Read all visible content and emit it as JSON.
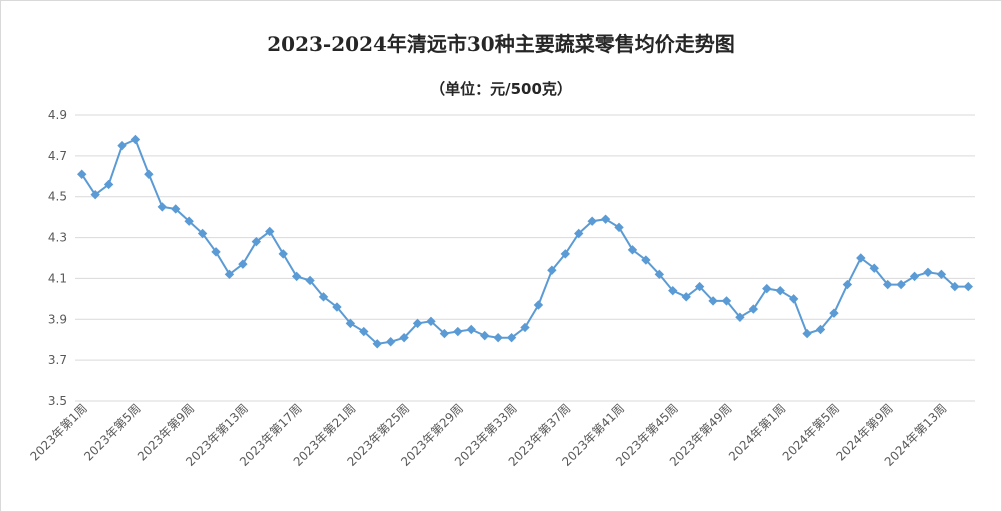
{
  "chart_data": {
    "type": "line",
    "title": "2023-2024年清远市30种主要蔬菜零售均价走势图",
    "subtitle": "（单位：元/500克）",
    "ylim": [
      3.5,
      4.9
    ],
    "yticks": [
      "3.5",
      "3.7",
      "3.9",
      "4.1",
      "4.3",
      "4.5",
      "4.7",
      "4.9"
    ],
    "grid": true,
    "line_color": "#5b9bd5",
    "x": [
      "2023年第1周",
      "2023年第2周",
      "2023年第3周",
      "2023年第4周",
      "2023年第5周",
      "2023年第6周",
      "2023年第7周",
      "2023年第8周",
      "2023年第9周",
      "2023年第10周",
      "2023年第11周",
      "2023年第12周",
      "2023年第13周",
      "2023年第14周",
      "2023年第15周",
      "2023年第16周",
      "2023年第17周",
      "2023年第18周",
      "2023年第19周",
      "2023年第20周",
      "2023年第21周",
      "2023年第22周",
      "2023年第23周",
      "2023年第24周",
      "2023年第25周",
      "2023年第26周",
      "2023年第27周",
      "2023年第28周",
      "2023年第29周",
      "2023年第30周",
      "2023年第31周",
      "2023年第32周",
      "2023年第33周",
      "2023年第34周",
      "2023年第35周",
      "2023年第36周",
      "2023年第37周",
      "2023年第38周",
      "2023年第39周",
      "2023年第40周",
      "2023年第41周",
      "2023年第42周",
      "2023年第43周",
      "2023年第44周",
      "2023年第45周",
      "2023年第46周",
      "2023年第47周",
      "2023年第48周",
      "2023年第49周",
      "2023年第50周",
      "2023年第51周",
      "2023年第52周",
      "2024年第1周",
      "2024年第2周",
      "2024年第3周",
      "2024年第4周",
      "2024年第5周",
      "2024年第6周",
      "2024年第7周",
      "2024年第8周",
      "2024年第9周",
      "2024年第10周",
      "2024年第11周",
      "2024年第12周",
      "2024年第13周",
      "2024年第14周",
      "2024年第15周"
    ],
    "x_tick_labels": [
      "2023年第1周",
      "2023年第5周",
      "2023年第9周",
      "2023年第13周",
      "2023年第17周",
      "2023年第21周",
      "2023年第25周",
      "2023年第29周",
      "2023年第33周",
      "2023年第37周",
      "2023年第41周",
      "2023年第45周",
      "2023年第49周",
      "2024年第1周",
      "2024年第5周",
      "2024年第9周",
      "2024年第13周"
    ],
    "x_tick_indices": [
      0,
      4,
      8,
      12,
      16,
      20,
      24,
      28,
      32,
      36,
      40,
      44,
      48,
      52,
      56,
      60,
      64
    ],
    "values": [
      4.61,
      4.51,
      4.56,
      4.75,
      4.78,
      4.61,
      4.45,
      4.44,
      4.38,
      4.32,
      4.23,
      4.12,
      4.17,
      4.28,
      4.33,
      4.22,
      4.11,
      4.09,
      4.01,
      3.96,
      3.88,
      3.84,
      3.78,
      3.79,
      3.81,
      3.88,
      3.89,
      3.83,
      3.84,
      3.85,
      3.82,
      3.81,
      3.81,
      3.86,
      3.97,
      4.14,
      4.22,
      4.32,
      4.38,
      4.39,
      4.35,
      4.24,
      4.19,
      4.12,
      4.04,
      4.01,
      4.06,
      3.99,
      3.99,
      3.91,
      3.95,
      4.05,
      4.04,
      4.0,
      3.83,
      3.85,
      3.93,
      4.07,
      4.2,
      4.15,
      4.07,
      4.07,
      4.11,
      4.13,
      4.12,
      4.06,
      4.06
    ]
  }
}
